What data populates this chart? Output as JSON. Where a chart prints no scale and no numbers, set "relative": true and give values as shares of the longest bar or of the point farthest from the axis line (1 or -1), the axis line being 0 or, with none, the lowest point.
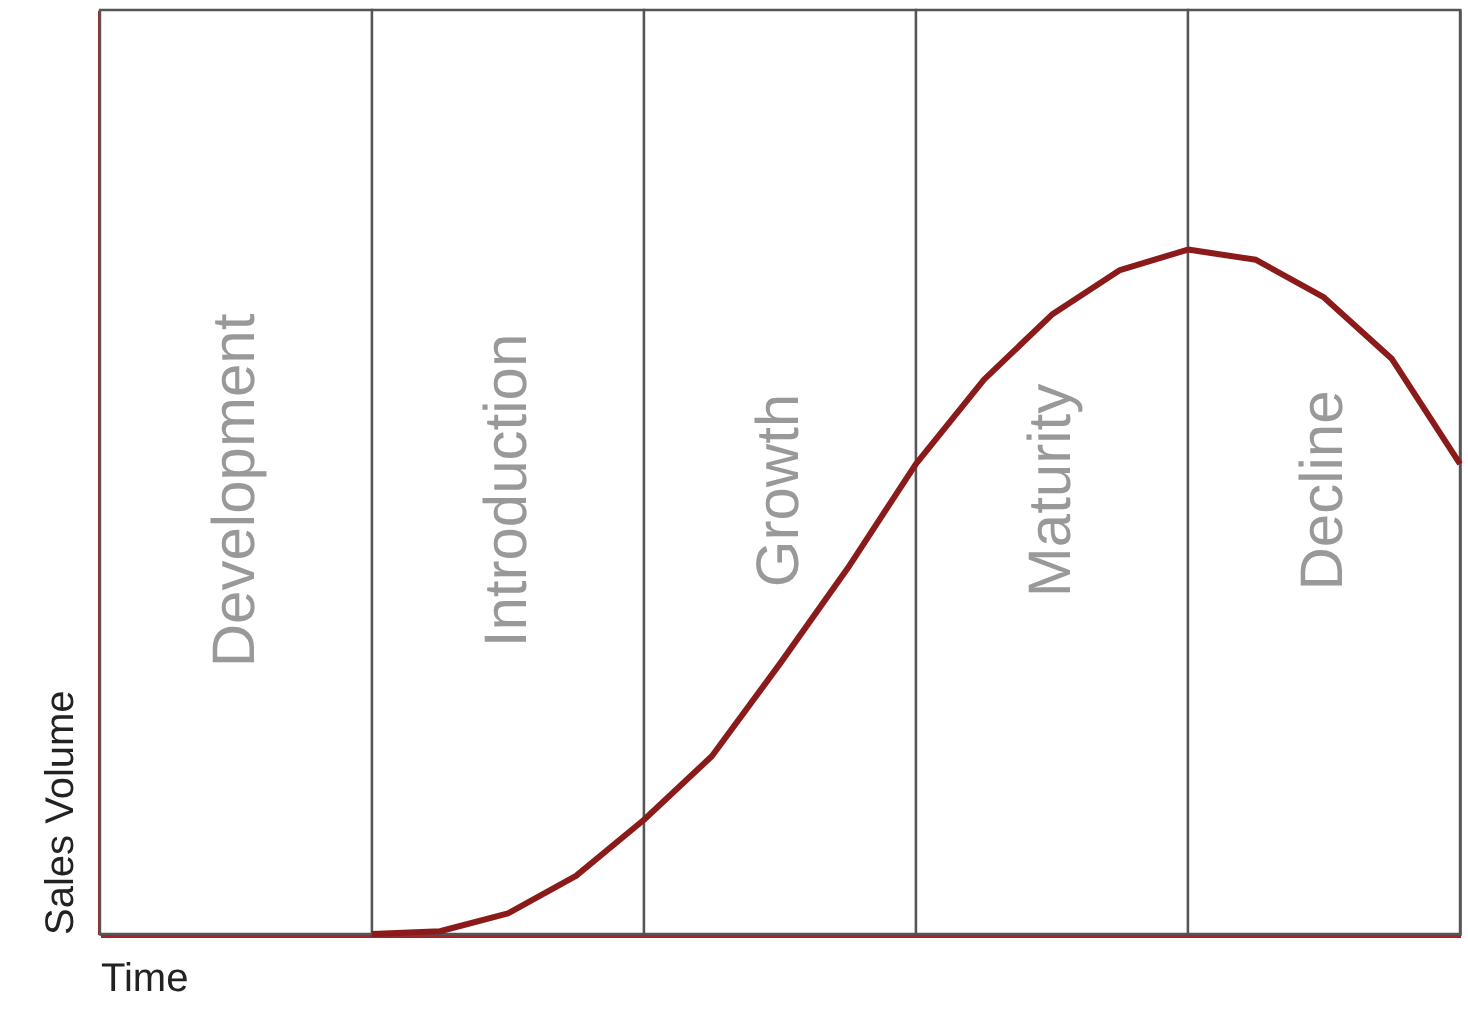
{
  "chart_data": {
    "type": "line",
    "relative": true,
    "xlabel": "Time",
    "ylabel": "Sales Volume",
    "categories": [
      null,
      null,
      null,
      null,
      null,
      null,
      null,
      null,
      null,
      null,
      null,
      null,
      null,
      null,
      null,
      null,
      null,
      null,
      null,
      null,
      null
    ],
    "series": [
      {
        "color": "#8b1a1a",
        "values": [
          null,
          null,
          null,
          null,
          0,
          0.004,
          0.03,
          0.085,
          0.167,
          0.26,
          0.395,
          0.535,
          0.687,
          0.81,
          0.905,
          0.97,
          1,
          0.985,
          0.93,
          0.84,
          0.687
        ]
      }
    ],
    "marker": "none",
    "line_style": "solid",
    "annotations": [
      "Development",
      "Introduction",
      "Growth",
      "Maturity",
      "Decline"
    ]
  }
}
